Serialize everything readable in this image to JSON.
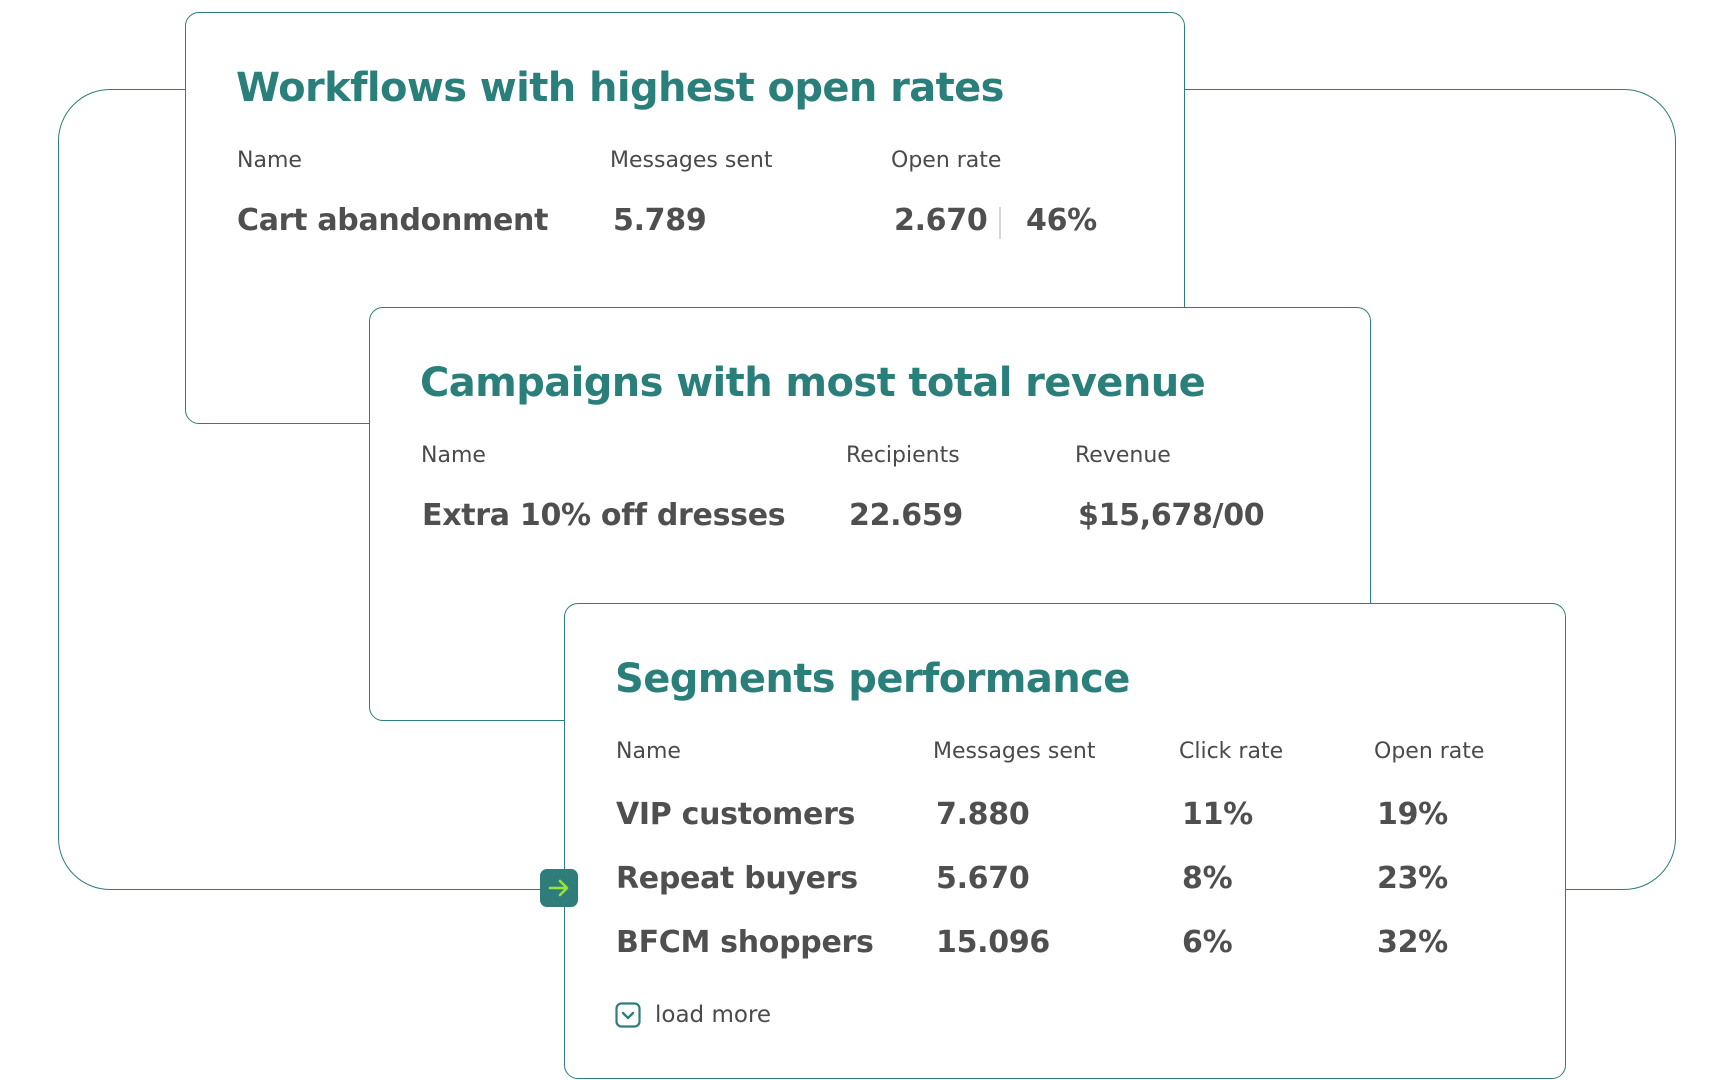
{
  "workflows_card": {
    "title": "Workflows with highest open rates",
    "columns": [
      "Name",
      "Messages sent",
      "Open rate"
    ],
    "row": {
      "name": "Cart abandonment",
      "messages_sent": "5.789",
      "open_count": "2.670",
      "open_rate": "46%"
    }
  },
  "campaigns_card": {
    "title": "Campaigns with most total revenue",
    "columns": [
      "Name",
      "Recipients",
      "Revenue"
    ],
    "row": {
      "name": "Extra 10% off dresses",
      "recipients": "22.659",
      "revenue": "$15,678/00"
    }
  },
  "segments_card": {
    "title": "Segments performance",
    "columns": [
      "Name",
      "Messages sent",
      "Click rate",
      "Open rate"
    ],
    "rows": [
      {
        "name": "VIP customers",
        "messages_sent": "7.880",
        "click_rate": "11%",
        "open_rate": "19%"
      },
      {
        "name": "Repeat buyers",
        "messages_sent": "5.670",
        "click_rate": "8%",
        "open_rate": "23%"
      },
      {
        "name": "BFCM shoppers",
        "messages_sent": "15.096",
        "click_rate": "6%",
        "open_rate": "32%"
      }
    ],
    "load_more_label": "load more",
    "load_more_icon": "chevron-down-icon"
  },
  "connector_icon": "arrow-right-icon",
  "colors": {
    "accent": "#2e7d7a",
    "title": "#2a7f7a",
    "text": "#4f4f4f",
    "arrow": "#9be13c"
  }
}
